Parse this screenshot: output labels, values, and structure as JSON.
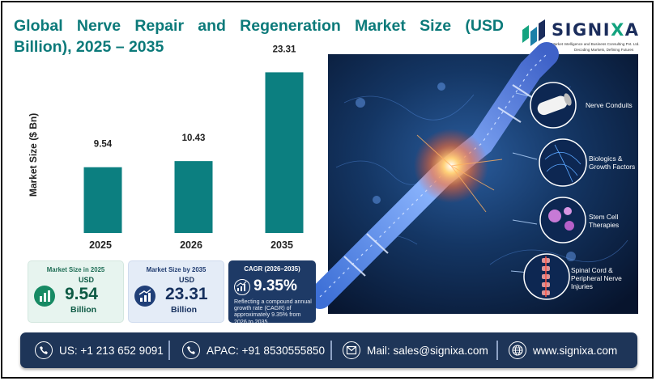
{
  "title": {
    "line1": "Global Nerve Repair and Regeneration Market Size (USD",
    "line2": "Billion), 2025 – 2035"
  },
  "logo": {
    "word_pre": "SIGNI",
    "word_x": "X",
    "word_post": "A",
    "sub1": "Market Intelligence and Business Consulting Pvt. Ltd.",
    "sub2": "Decoding Markets, Defining Futures"
  },
  "chart_data": {
    "type": "bar",
    "categories": [
      "2025",
      "2026",
      "2035"
    ],
    "values": [
      9.54,
      10.43,
      23.31
    ],
    "value_labels": [
      "9.54",
      "10.43",
      "23.31"
    ],
    "title": "Global Nerve Repair and Regeneration Market Size (USD Billion), 2025 – 2035",
    "xlabel": "",
    "ylabel": "Market Size ($ Bn)",
    "ylim": [
      0,
      25
    ],
    "grid": false,
    "legend": "none",
    "bar_color": "#0c7f80"
  },
  "hero": {
    "labels": [
      {
        "key": "conduits",
        "text": "Nerve Conduits"
      },
      {
        "key": "biologics",
        "text": "Biologics &\nGrowth Factors"
      },
      {
        "key": "stemcell",
        "text": "Stem Cell\nTherapies"
      },
      {
        "key": "spinal",
        "text": "Spinal Cord &\nPeripheral Nerve\nInjuries"
      }
    ]
  },
  "kpis": {
    "size2025": {
      "head": "Market Size in 2025",
      "usd": "USD",
      "value": "9.54",
      "unit": "Billion",
      "icon": "bar-chart-icon"
    },
    "size2035": {
      "head": "Market Size by 2035",
      "usd": "USD",
      "value": "23.31",
      "unit": "Billion",
      "icon": "trend-chart-icon"
    },
    "cagr": {
      "head": "CAGR (2026–2035)",
      "value": "9.35%",
      "desc": "Reflecting a compound annual growth rate (CAGR) of approximately 9.35% from 2026 to 2035.",
      "icon": "growth-chart-icon"
    }
  },
  "footer": {
    "us": {
      "text": "US: +1 213 652 9091",
      "icon": "phone-icon"
    },
    "apac": {
      "text": "APAC: +91 8530555850",
      "icon": "phone-icon"
    },
    "mail": {
      "text": "Mail: sales@signixa.com",
      "icon": "mail-icon"
    },
    "web": {
      "text": "www.signixa.com",
      "icon": "globe-icon"
    }
  },
  "colors": {
    "accent": "#0c7a7a",
    "bar": "#0c7f80",
    "footer_bg": "#1e3558",
    "brand_navy": "#1b2d5c",
    "brand_green": "#14a37f"
  }
}
